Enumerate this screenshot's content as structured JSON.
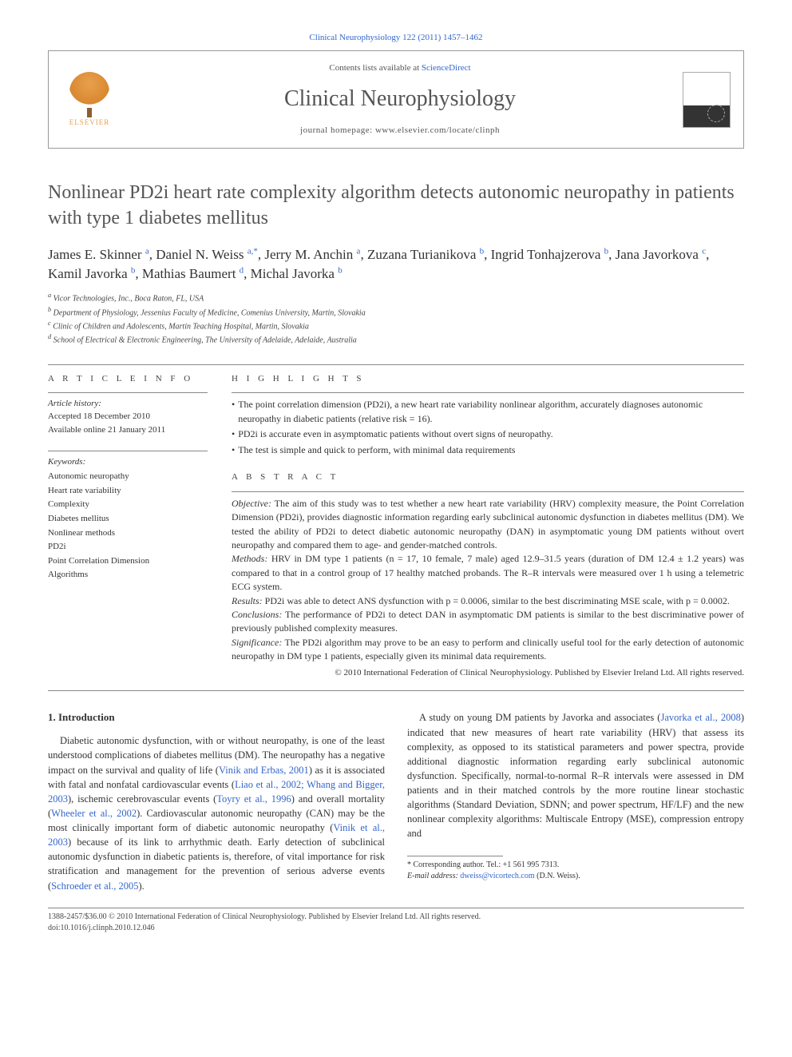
{
  "journalRef": "Clinical Neurophysiology 122 (2011) 1457–1462",
  "contentsLine": "Contents lists available at ",
  "scienceDirect": "ScienceDirect",
  "journalTitle": "Clinical Neurophysiology",
  "homepageLine": "journal homepage: www.elsevier.com/locate/clinph",
  "elsevierLabel": "ELSEVIER",
  "articleTitle": "Nonlinear PD2i heart rate complexity algorithm detects autonomic neuropathy in patients with type 1 diabetes mellitus",
  "authors": [
    {
      "name": "James E. Skinner",
      "sup": "a"
    },
    {
      "name": "Daniel N. Weiss",
      "sup": "a,",
      "corr": "*"
    },
    {
      "name": "Jerry M. Anchin",
      "sup": "a"
    },
    {
      "name": "Zuzana Turianikova",
      "sup": "b"
    },
    {
      "name": "Ingrid Tonhajzerova",
      "sup": "b"
    },
    {
      "name": "Jana Javorkova",
      "sup": "c"
    },
    {
      "name": "Kamil Javorka",
      "sup": "b"
    },
    {
      "name": "Mathias Baumert",
      "sup": "d"
    },
    {
      "name": "Michal Javorka",
      "sup": "b"
    }
  ],
  "affiliations": [
    {
      "sup": "a",
      "text": "Vicor Technologies, Inc., Boca Raton, FL, USA"
    },
    {
      "sup": "b",
      "text": "Department of Physiology, Jessenius Faculty of Medicine, Comenius University, Martin, Slovakia"
    },
    {
      "sup": "c",
      "text": "Clinic of Children and Adolescents, Martin Teaching Hospital, Martin, Slovakia"
    },
    {
      "sup": "d",
      "text": "School of Electrical & Electronic Engineering, The University of Adelaide, Adelaide, Australia"
    }
  ],
  "labels": {
    "articleInfo": "A R T I C L E   I N F O",
    "highlights": "H I G H L I G H T S",
    "abstract": "A B S T R A C T",
    "articleHistory": "Article history:",
    "keywords": "Keywords:"
  },
  "history": {
    "accepted": "Accepted 18 December 2010",
    "online": "Available online 21 January 2011"
  },
  "keywords": [
    "Autonomic neuropathy",
    "Heart rate variability",
    "Complexity",
    "Diabetes mellitus",
    "Nonlinear methods",
    "PD2i",
    "Point Correlation Dimension",
    "Algorithms"
  ],
  "highlights": [
    "The point correlation dimension (PD2i), a new heart rate variability nonlinear algorithm, accurately diagnoses autonomic neuropathy in diabetic patients (relative risk = 16).",
    "PD2i is accurate even in asymptomatic patients without overt signs of neuropathy.",
    "The test is simple and quick to perform, with minimal data requirements"
  ],
  "abstract": {
    "objective": "Objective: The aim of this study was to test whether a new heart rate variability (HRV) complexity measure, the Point Correlation Dimension (PD2i), provides diagnostic information regarding early subclinical autonomic dysfunction in diabetes mellitus (DM). We tested the ability of PD2i to detect diabetic autonomic neuropathy (DAN) in asymptomatic young DM patients without overt neuropathy and compared them to age- and gender-matched controls.",
    "methods": "Methods: HRV in DM type 1 patients (n = 17, 10 female, 7 male) aged 12.9–31.5 years (duration of DM 12.4 ± 1.2 years) was compared to that in a control group of 17 healthy matched probands. The R–R intervals were measured over 1 h using a telemetric ECG system.",
    "results": "Results: PD2i was able to detect ANS dysfunction with p = 0.0006, similar to the best discriminating MSE scale, with p = 0.0002.",
    "conclusions": "Conclusions: The performance of PD2i to detect DAN in asymptomatic DM patients is similar to the best discriminative power of previously published complexity measures.",
    "significance": "Significance: The PD2i algorithm may prove to be an easy to perform and clinically useful tool for the early detection of autonomic neuropathy in DM type 1 patients, especially given its minimal data requirements."
  },
  "copyright": "© 2010 International Federation of Clinical Neurophysiology. Published by Elsevier Ireland Ltd. All rights reserved.",
  "introHeading": "1. Introduction",
  "bodyParagraphs": {
    "p1a": "Diabetic autonomic dysfunction, with or without neuropathy, is one of the least understood complications of diabetes mellitus (DM). The neuropathy has a negative impact on the survival and quality of life (",
    "p1link1": "Vinik and Erbas, 2001",
    "p1b": ") as it is associated with fatal and nonfatal cardiovascular events (",
    "p1link2": "Liao et al., 2002; Whang and Bigger, 2003",
    "p1c": "), ischemic cerebrovascular events (",
    "p1link3": "Toyry et al., 1996",
    "p1d": ") and overall mortality (",
    "p1link4": "Wheeler et al., 2002",
    "p1e": "). Cardiovascular autonomic neuropathy (CAN) may be the most clinically important form of diabetic autonomic neuropathy (",
    "p1link5": "Vinik et al., 2003",
    "p1f": ") because ",
    "p1g": "of its link to arrhythmic death. Early detection of subclinical autonomic dysfunction in diabetic patients is, therefore, of vital importance for risk stratification and management for the prevention of serious adverse events (",
    "p1link6": "Schroeder et al., 2005",
    "p1h": ").",
    "p2a": "A study on young DM patients by Javorka and associates (",
    "p2link1": "Javorka et al., 2008",
    "p2b": ") indicated that new measures of heart rate variability (HRV) that assess its complexity, as opposed to its statistical parameters and power spectra, provide additional diagnostic information regarding early subclinical autonomic dysfunction. Specifically, normal-to-normal R–R intervals were assessed in DM patients and in their matched controls by the more routine linear stochastic algorithms (Standard Deviation, SDNN; and power spectrum, HF/LF) and the new nonlinear complexity algorithms: Multiscale Entropy (MSE), compression entropy and"
  },
  "corresponding": {
    "label": "* Corresponding author. Tel.: +1 561 995 7313.",
    "emailLabel": "E-mail address: ",
    "email": "dweiss@vicortech.com",
    "emailSuffix": " (D.N. Weiss)."
  },
  "footer": {
    "line1": "1388-2457/$36.00 © 2010 International Federation of Clinical Neurophysiology. Published by Elsevier Ireland Ltd. All rights reserved.",
    "line2": "doi:10.1016/j.clinph.2010.12.046"
  }
}
